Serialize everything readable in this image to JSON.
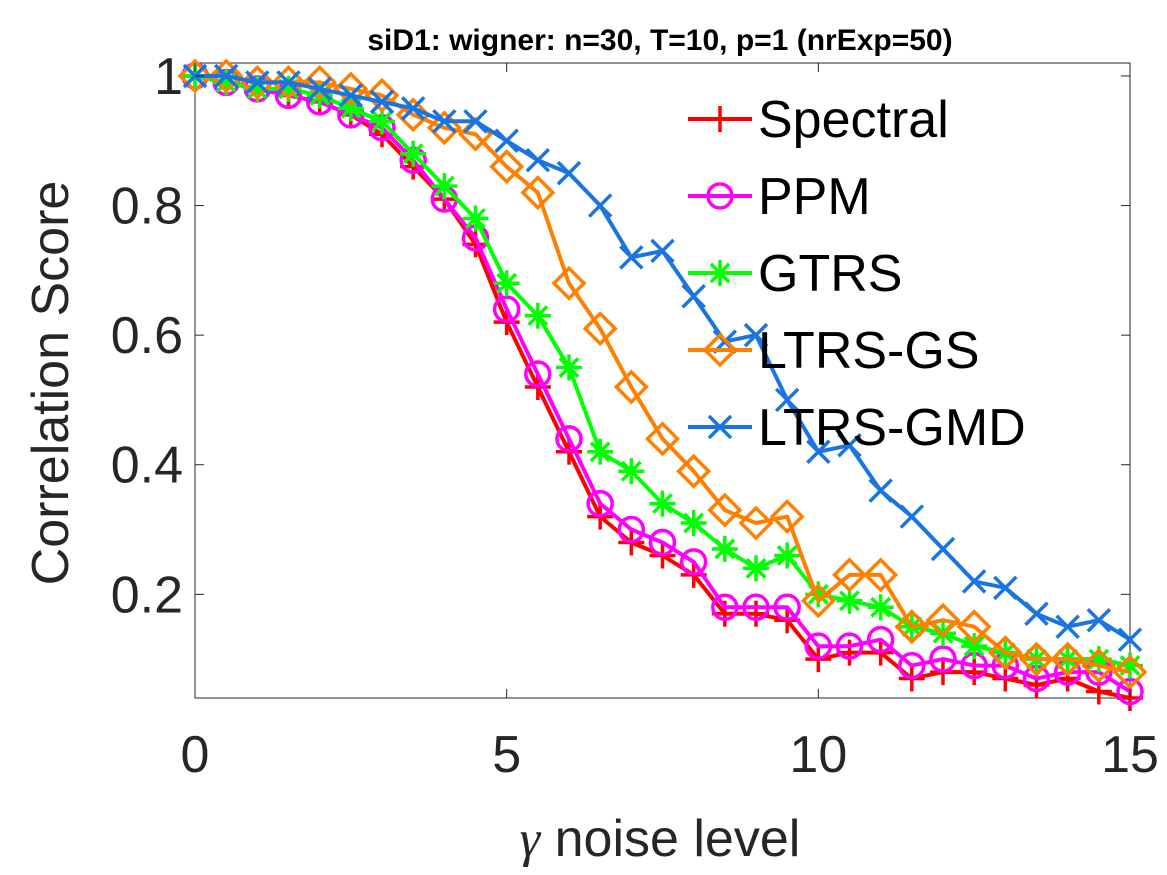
{
  "chart_data": {
    "type": "line",
    "title": "siD1: wigner: n=30, T=10, p=1 (nrExp=50)",
    "xlabel_symbol": "γ",
    "xlabel_text": " noise level",
    "ylabel": "Correlation Score",
    "xlim": [
      0,
      15
    ],
    "ylim": [
      0.04,
      1.02
    ],
    "xticks": [
      0,
      5,
      10,
      15
    ],
    "xtick_labels": [
      "0",
      "5",
      "10",
      "15"
    ],
    "yticks": [
      0.2,
      0.4,
      0.6,
      0.8,
      1
    ],
    "ytick_labels": [
      "0.2",
      "0.4",
      "0.6",
      "0.8",
      "1"
    ],
    "grid": false,
    "legend_position": "top-right",
    "x": [
      0,
      0.5,
      1,
      1.5,
      2,
      2.5,
      3,
      3.5,
      4,
      4.5,
      5,
      5.5,
      6,
      6.5,
      7,
      7.5,
      8,
      8.5,
      9,
      9.5,
      10,
      10.5,
      11,
      11.5,
      12,
      12.5,
      13,
      13.5,
      14,
      14.5,
      15
    ],
    "series": [
      {
        "name": "Spectral",
        "color": "#ff0000",
        "marker": "plus",
        "values": [
          1.0,
          0.99,
          0.98,
          0.97,
          0.96,
          0.94,
          0.91,
          0.86,
          0.81,
          0.74,
          0.62,
          0.52,
          0.42,
          0.32,
          0.28,
          0.26,
          0.23,
          0.17,
          0.17,
          0.16,
          0.1,
          0.11,
          0.11,
          0.07,
          0.08,
          0.08,
          0.07,
          0.06,
          0.07,
          0.05,
          0.04
        ]
      },
      {
        "name": "PPM",
        "color": "#ff00ff",
        "marker": "circle",
        "values": [
          1.0,
          0.99,
          0.98,
          0.97,
          0.96,
          0.94,
          0.92,
          0.87,
          0.81,
          0.75,
          0.64,
          0.54,
          0.44,
          0.34,
          0.3,
          0.28,
          0.25,
          0.18,
          0.18,
          0.18,
          0.12,
          0.12,
          0.13,
          0.09,
          0.1,
          0.09,
          0.09,
          0.07,
          0.08,
          0.08,
          0.05
        ]
      },
      {
        "name": "GTRS",
        "color": "#00ff00",
        "marker": "asterisk",
        "values": [
          1.0,
          0.99,
          0.98,
          0.98,
          0.97,
          0.95,
          0.93,
          0.88,
          0.83,
          0.78,
          0.68,
          0.63,
          0.55,
          0.42,
          0.39,
          0.34,
          0.31,
          0.27,
          0.24,
          0.26,
          0.2,
          0.19,
          0.18,
          0.15,
          0.14,
          0.12,
          0.11,
          0.1,
          0.1,
          0.1,
          0.09
        ]
      },
      {
        "name": "LTRS-GS",
        "color": "#ff8000",
        "marker": "diamond",
        "values": [
          1.0,
          1.0,
          0.99,
          0.99,
          0.99,
          0.98,
          0.97,
          0.94,
          0.92,
          0.91,
          0.86,
          0.82,
          0.68,
          0.61,
          0.52,
          0.44,
          0.39,
          0.33,
          0.31,
          0.32,
          0.19,
          0.23,
          0.23,
          0.15,
          0.16,
          0.15,
          0.11,
          0.1,
          0.1,
          0.09,
          0.08
        ]
      },
      {
        "name": "LTRS-GMD",
        "color": "#1a75e0",
        "marker": "x",
        "values": [
          1.0,
          1.0,
          0.99,
          0.99,
          0.98,
          0.97,
          0.96,
          0.95,
          0.93,
          0.93,
          0.9,
          0.87,
          0.85,
          0.8,
          0.72,
          0.73,
          0.66,
          0.59,
          0.6,
          0.5,
          0.42,
          0.43,
          0.36,
          0.32,
          0.27,
          0.22,
          0.21,
          0.17,
          0.15,
          0.16,
          0.13
        ]
      }
    ]
  }
}
